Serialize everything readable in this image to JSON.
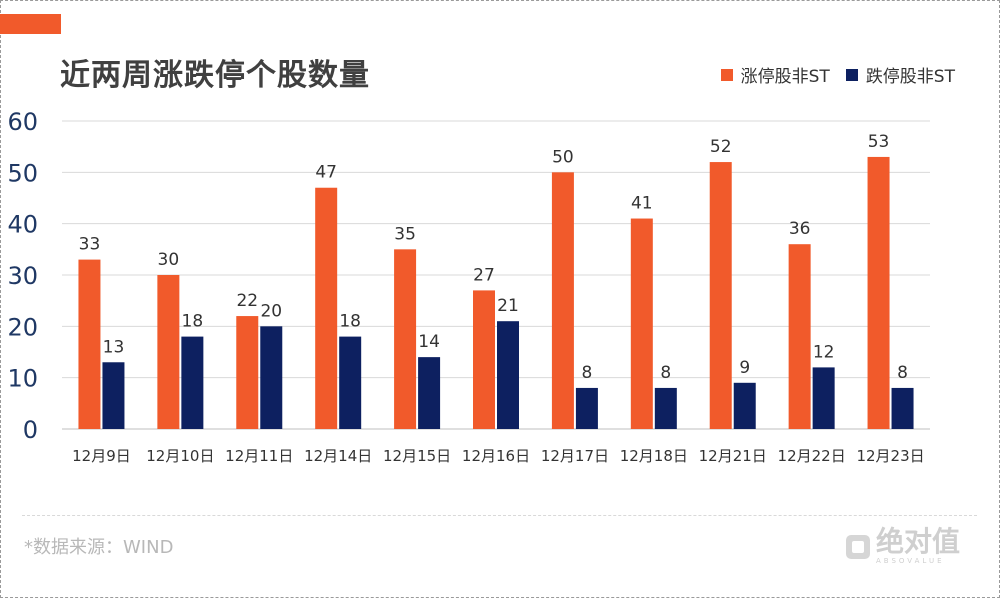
{
  "title": "近两周涨跌停个股数量",
  "source_note": "*数据来源：WIND",
  "watermark": {
    "text": "绝对值",
    "subtext": "ABSOVALUE"
  },
  "colors": {
    "series_up": "#f15a2b",
    "series_down": "#0d2060",
    "accent": "#f15a2b"
  },
  "chart_data": {
    "type": "bar",
    "title": "近两周涨跌停个股数量",
    "categories": [
      "12月9日",
      "12月10日",
      "12月11日",
      "12月14日",
      "12月15日",
      "12月16日",
      "12月17日",
      "12月18日",
      "12月21日",
      "12月22日",
      "12月23日"
    ],
    "series": [
      {
        "name": "涨停股非ST",
        "values": [
          33,
          30,
          22,
          47,
          35,
          27,
          50,
          41,
          52,
          36,
          53
        ]
      },
      {
        "name": "跌停股非ST",
        "values": [
          13,
          18,
          20,
          18,
          14,
          21,
          8,
          8,
          9,
          12,
          8
        ]
      }
    ],
    "ylim": [
      0,
      60
    ],
    "yticks": [
      0,
      10,
      20,
      30,
      40,
      50,
      60
    ],
    "grid": true,
    "legend_position": "top-right",
    "data_labels": true
  }
}
